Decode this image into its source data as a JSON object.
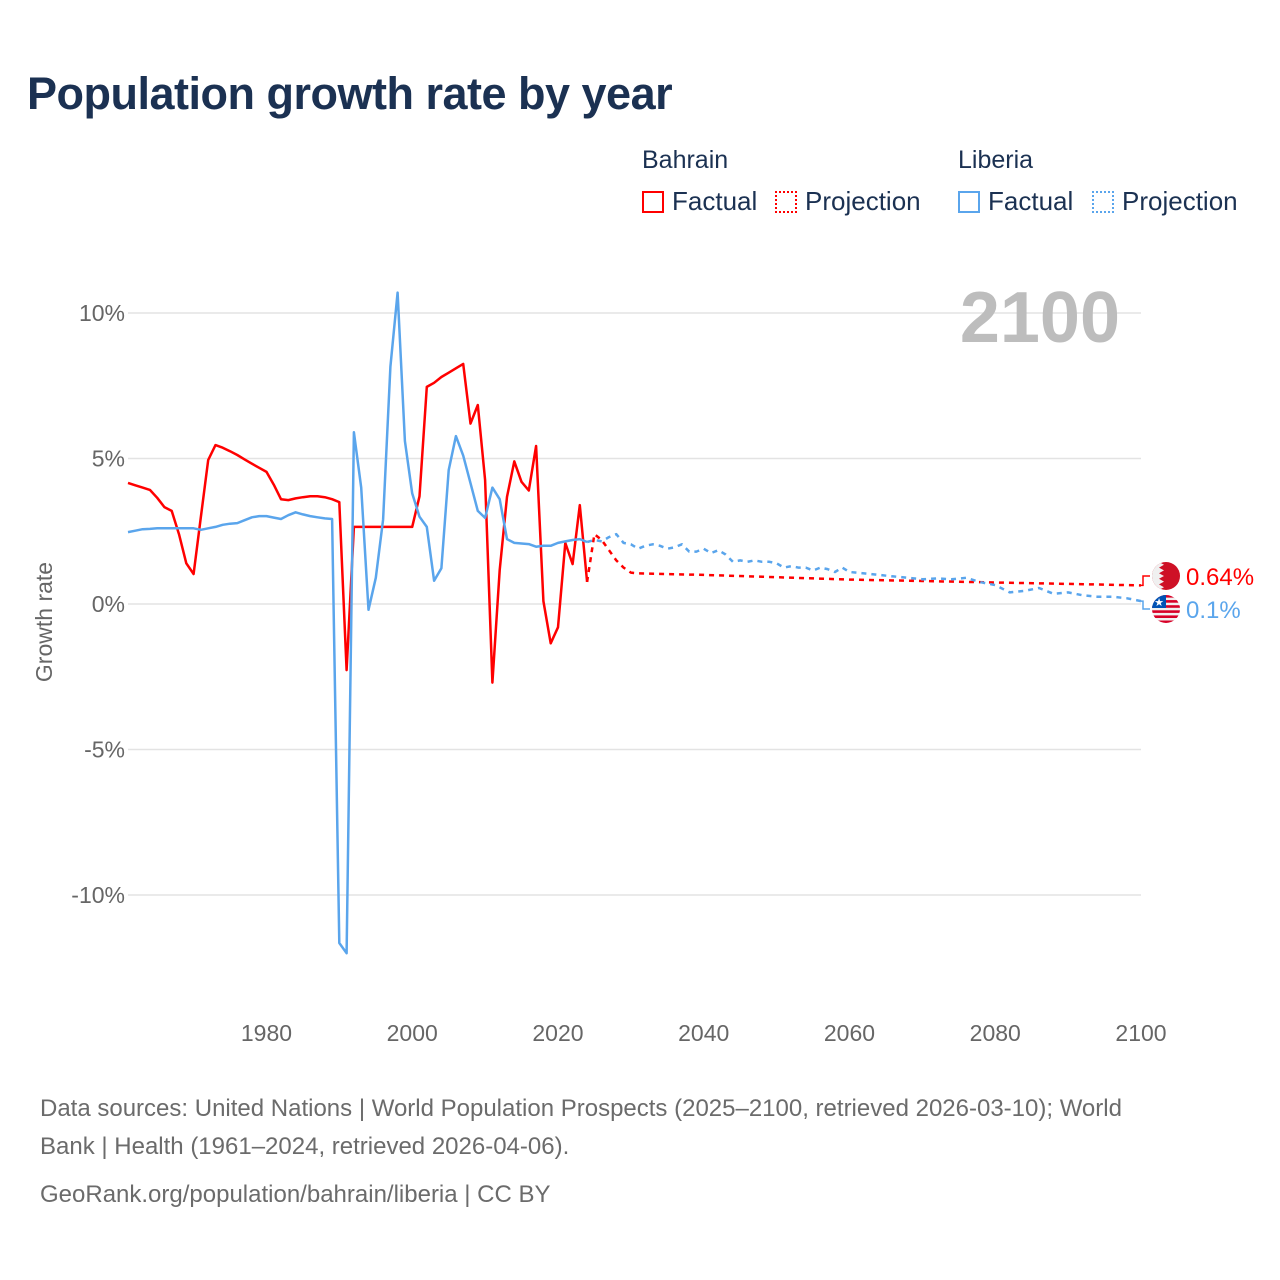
{
  "title": "Population growth rate by year",
  "legend": {
    "groups": [
      {
        "name": "Bahrain",
        "color": "#ff0000",
        "factual": "Factual",
        "projection": "Projection"
      },
      {
        "name": "Liberia",
        "color": "#5aa5ec",
        "factual": "Factual",
        "projection": "Projection"
      }
    ]
  },
  "year_display": "2100",
  "chart_data": {
    "type": "line",
    "title": "Population growth rate by year",
    "xlabel": "",
    "ylabel": "Growth rate",
    "xlim": [
      1961,
      2100
    ],
    "ylim": [
      -12.5,
      11
    ],
    "grid": true,
    "legend_placement": "top-right",
    "x_ticks": [
      {
        "v": 1980,
        "label": "1980"
      },
      {
        "v": 2000,
        "label": "2000"
      },
      {
        "v": 2020,
        "label": "2020"
      },
      {
        "v": 2040,
        "label": "2040"
      },
      {
        "v": 2060,
        "label": "2060"
      },
      {
        "v": 2080,
        "label": "2080"
      },
      {
        "v": 2100,
        "label": "2100"
      }
    ],
    "y_ticks": [
      {
        "v": 10,
        "label": "10%"
      },
      {
        "v": 5,
        "label": "5%"
      },
      {
        "v": 0,
        "label": "0%"
      },
      {
        "v": -5,
        "label": "-5%"
      },
      {
        "v": -10,
        "label": "-10%"
      }
    ],
    "series": [
      {
        "name": "Bahrain Factual",
        "country": "Bahrain",
        "style": "solid",
        "color": "#ff0000",
        "x": [
          1961,
          1962,
          1963,
          1964,
          1965,
          1966,
          1967,
          1968,
          1969,
          1970,
          1971,
          1972,
          1973,
          1974,
          1975,
          1976,
          1977,
          1978,
          1979,
          1980,
          1981,
          1982,
          1983,
          1984,
          1985,
          1986,
          1987,
          1988,
          1989,
          1990,
          1991,
          1992,
          1993,
          1994,
          1995,
          1996,
          1997,
          1998,
          1999,
          2000,
          2001,
          2002,
          2003,
          2004,
          2005,
          2006,
          2007,
          2008,
          2009,
          2010,
          2011,
          2012,
          2013,
          2014,
          2015,
          2016,
          2017,
          2018,
          2019,
          2020,
          2021,
          2022,
          2023,
          2024
        ],
        "y": [
          4.16,
          4.08,
          4.0,
          3.92,
          3.65,
          3.33,
          3.2,
          2.4,
          1.4,
          1.03,
          3.0,
          4.95,
          5.46,
          5.37,
          5.25,
          5.12,
          4.97,
          4.82,
          4.68,
          4.54,
          4.1,
          3.6,
          3.57,
          3.63,
          3.67,
          3.7,
          3.7,
          3.67,
          3.6,
          3.5,
          -2.27,
          2.65,
          2.65,
          2.65,
          2.65,
          2.65,
          2.65,
          2.65,
          2.65,
          2.65,
          3.7,
          7.46,
          7.6,
          7.8,
          7.95,
          8.1,
          8.25,
          6.2,
          6.84,
          4.26,
          -2.7,
          1.17,
          3.68,
          4.9,
          4.2,
          3.9,
          5.43,
          0.1,
          -1.35,
          -0.8,
          2.1,
          1.37,
          3.4,
          0.76
        ]
      },
      {
        "name": "Bahrain Projection",
        "country": "Bahrain",
        "style": "dotted",
        "color": "#ff0000",
        "x": [
          2024,
          2025,
          2026,
          2027,
          2028,
          2029,
          2030,
          2031,
          2040,
          2050,
          2060,
          2070,
          2080,
          2090,
          2100
        ],
        "y": [
          0.76,
          2.4,
          2.2,
          1.85,
          1.5,
          1.25,
          1.08,
          1.05,
          1.0,
          0.92,
          0.84,
          0.79,
          0.74,
          0.69,
          0.64
        ]
      },
      {
        "name": "Liberia Factual",
        "country": "Liberia",
        "style": "solid",
        "color": "#5aa5ec",
        "x": [
          1961,
          1962,
          1963,
          1964,
          1965,
          1966,
          1967,
          1968,
          1969,
          1970,
          1971,
          1972,
          1973,
          1974,
          1975,
          1976,
          1977,
          1978,
          1979,
          1980,
          1981,
          1982,
          1983,
          1984,
          1985,
          1986,
          1987,
          1988,
          1989,
          1990,
          1991,
          1992,
          1993,
          1994,
          1995,
          1996,
          1997,
          1998,
          1999,
          2000,
          2001,
          2002,
          2003,
          2004,
          2005,
          2006,
          2007,
          2008,
          2009,
          2010,
          2011,
          2012,
          2013,
          2014,
          2015,
          2016,
          2017,
          2018,
          2019,
          2020,
          2021,
          2022,
          2023,
          2024
        ],
        "y": [
          2.47,
          2.52,
          2.57,
          2.58,
          2.6,
          2.6,
          2.6,
          2.6,
          2.6,
          2.6,
          2.55,
          2.6,
          2.65,
          2.72,
          2.76,
          2.78,
          2.88,
          2.98,
          3.02,
          3.02,
          2.97,
          2.92,
          3.05,
          3.15,
          3.08,
          3.02,
          2.98,
          2.94,
          2.92,
          -11.65,
          -12.0,
          5.9,
          4.0,
          -0.2,
          0.9,
          2.9,
          8.15,
          10.7,
          5.6,
          3.8,
          3.0,
          2.65,
          0.8,
          1.23,
          4.6,
          5.77,
          5.1,
          4.15,
          3.2,
          2.96,
          4.0,
          3.6,
          2.23,
          2.1,
          2.08,
          2.06,
          1.97,
          2.0,
          2.0,
          2.1,
          2.15,
          2.2,
          2.23,
          2.13
        ]
      },
      {
        "name": "Liberia Projection",
        "country": "Liberia",
        "style": "dotted",
        "color": "#5aa5ec",
        "x": [
          2024,
          2025,
          2026,
          2027,
          2028,
          2029,
          2030,
          2031,
          2032,
          2033,
          2034,
          2035,
          2036,
          2037,
          2038,
          2039,
          2040,
          2041,
          2042,
          2043,
          2044,
          2045,
          2046,
          2047,
          2048,
          2049,
          2050,
          2051,
          2052,
          2053,
          2054,
          2055,
          2056,
          2057,
          2058,
          2059,
          2060,
          2062,
          2064,
          2066,
          2068,
          2070,
          2072,
          2074,
          2076,
          2078,
          2080,
          2082,
          2084,
          2086,
          2088,
          2090,
          2092,
          2094,
          2096,
          2098,
          2100
        ],
        "y": [
          2.13,
          2.2,
          2.15,
          2.3,
          2.4,
          2.1,
          2.05,
          1.9,
          2.0,
          2.05,
          2.0,
          1.9,
          1.95,
          2.05,
          1.8,
          1.8,
          1.9,
          1.75,
          1.85,
          1.7,
          1.45,
          1.5,
          1.45,
          1.5,
          1.45,
          1.45,
          1.4,
          1.25,
          1.3,
          1.25,
          1.25,
          1.15,
          1.25,
          1.2,
          1.1,
          1.25,
          1.1,
          1.05,
          1.0,
          0.95,
          0.9,
          0.85,
          0.88,
          0.85,
          0.9,
          0.75,
          0.65,
          0.4,
          0.45,
          0.55,
          0.35,
          0.4,
          0.3,
          0.25,
          0.25,
          0.2,
          0.1
        ]
      }
    ],
    "end_labels": [
      {
        "country": "Bahrain",
        "flag": "bahrain-flag",
        "label": "0.64%",
        "color": "#ff0000"
      },
      {
        "country": "Liberia",
        "flag": "liberia-flag",
        "label": "0.1%",
        "color": "#5aa5ec"
      }
    ]
  },
  "footer": {
    "line1": "Data sources: United Nations | World Population Prospects (2025–2100, retrieved 2026-03-10); World",
    "line2": "Bank | Health (1961–2024, retrieved 2026-04-06).",
    "line3": "GeoRank.org/population/bahrain/liberia | CC BY"
  }
}
